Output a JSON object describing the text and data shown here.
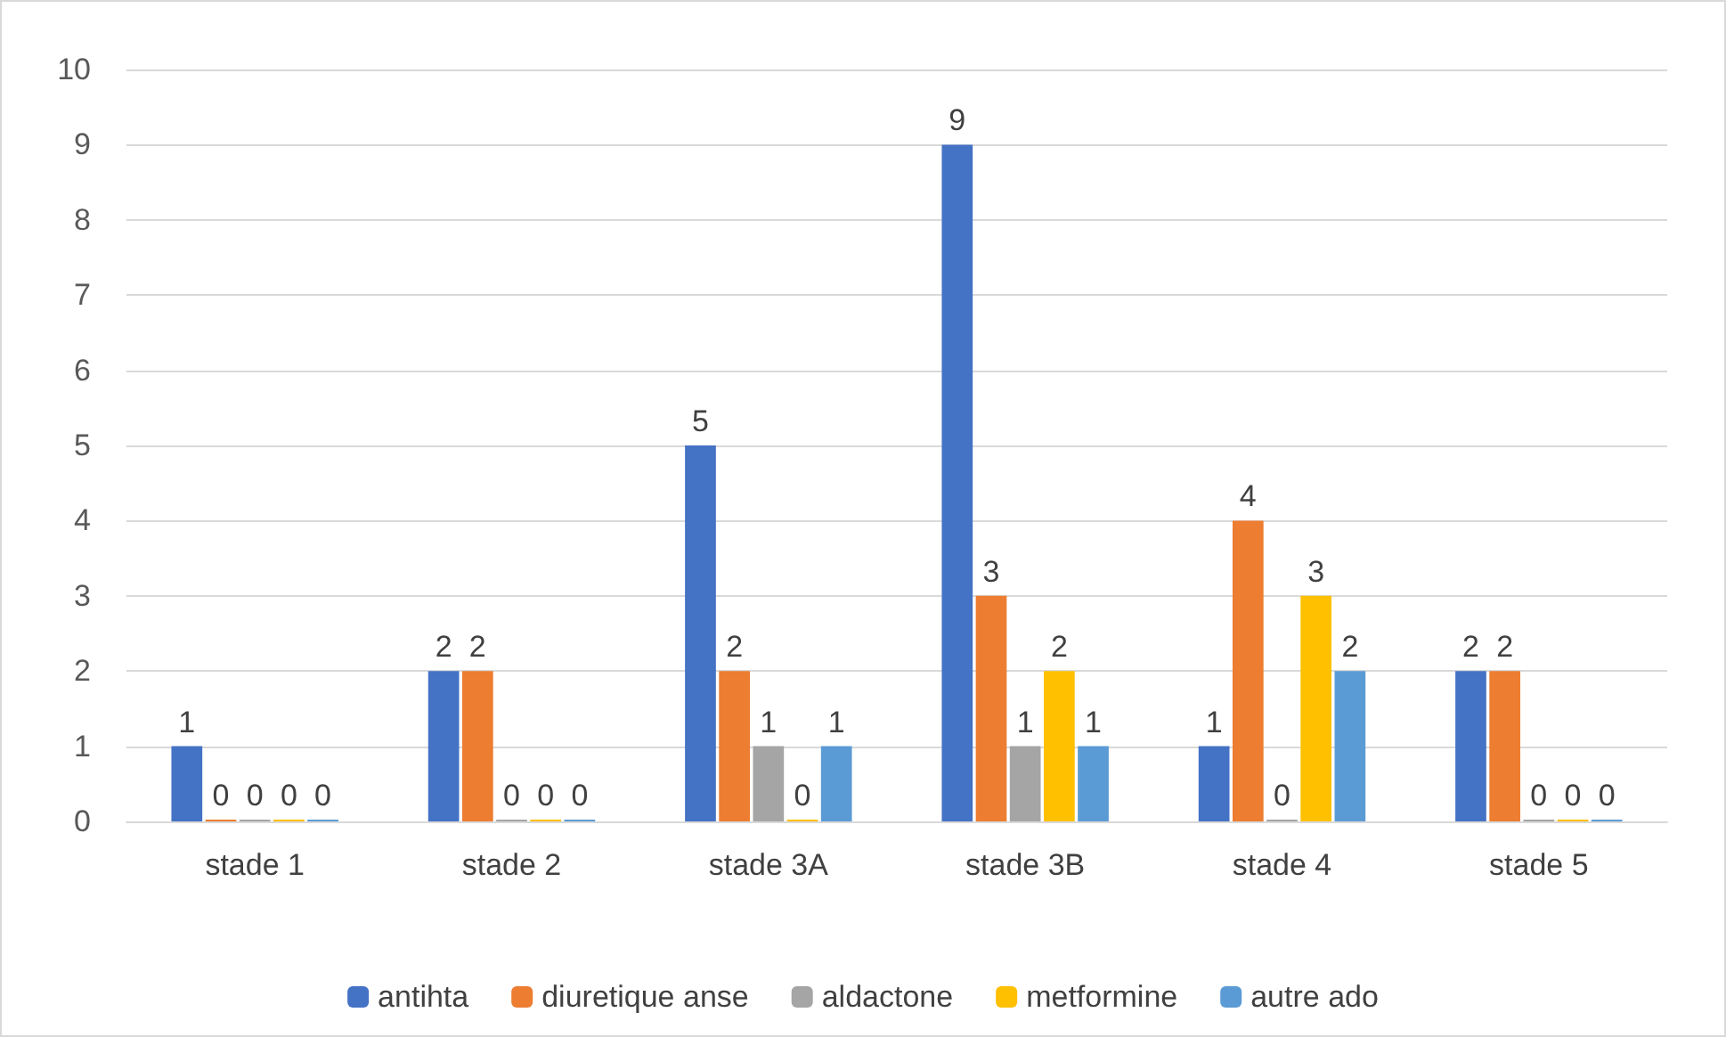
{
  "chart_data": {
    "type": "bar",
    "categories": [
      "stade 1",
      "stade 2",
      "stade 3A",
      "stade 3B",
      "stade 4",
      "stade 5"
    ],
    "series": [
      {
        "name": "antihta",
        "color": "#4472c4",
        "values": [
          1,
          2,
          5,
          9,
          1,
          2
        ]
      },
      {
        "name": "diuretique anse",
        "color": "#ed7d31",
        "values": [
          0,
          2,
          2,
          3,
          4,
          2
        ]
      },
      {
        "name": "aldactone",
        "color": "#a5a5a5",
        "values": [
          0,
          0,
          1,
          1,
          0,
          0
        ]
      },
      {
        "name": "metformine",
        "color": "#ffc000",
        "values": [
          0,
          0,
          0,
          2,
          3,
          0
        ]
      },
      {
        "name": "autre ado",
        "color": "#5b9bd5",
        "values": [
          0,
          0,
          1,
          1,
          2,
          0
        ]
      }
    ],
    "ylim": [
      0,
      10
    ],
    "yticks": [
      0,
      1,
      2,
      3,
      4,
      5,
      6,
      7,
      8,
      9,
      10
    ],
    "grid": "y",
    "legend": "bottom",
    "data_labels": true
  }
}
